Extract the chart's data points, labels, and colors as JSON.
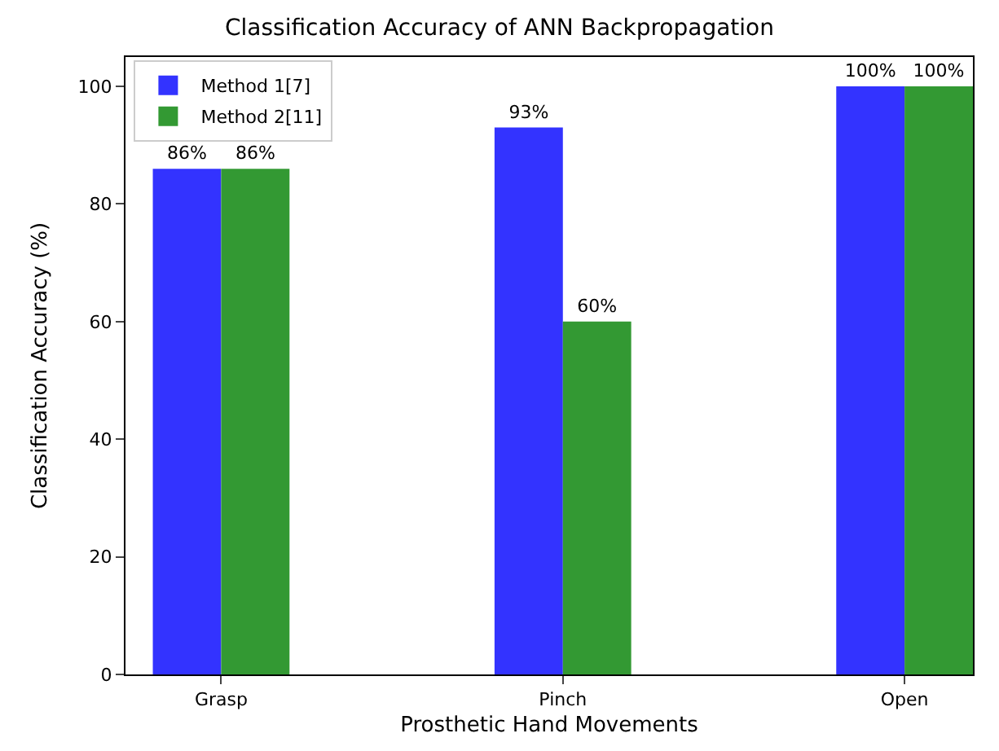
{
  "chart_data": {
    "type": "bar",
    "title": "Classification Accuracy of ANN Backpropagation",
    "xlabel": "Prosthetic Hand Movements",
    "ylabel": "Classification Accuracy (%)",
    "categories": [
      "Grasp",
      "Pinch",
      "Open"
    ],
    "series": [
      {
        "name": "Method 1[7]",
        "color": "#3333ff",
        "values": [
          86,
          93,
          100
        ],
        "value_labels": [
          "86%",
          "93%",
          "100%"
        ]
      },
      {
        "name": "Method 2[11]",
        "color": "#339933",
        "values": [
          86,
          60,
          100
        ],
        "value_labels": [
          "86%",
          "60%",
          "100%"
        ]
      }
    ],
    "ylim": [
      0,
      105
    ],
    "yticks": [
      0,
      20,
      40,
      60,
      80,
      100
    ],
    "legend": "top left"
  }
}
